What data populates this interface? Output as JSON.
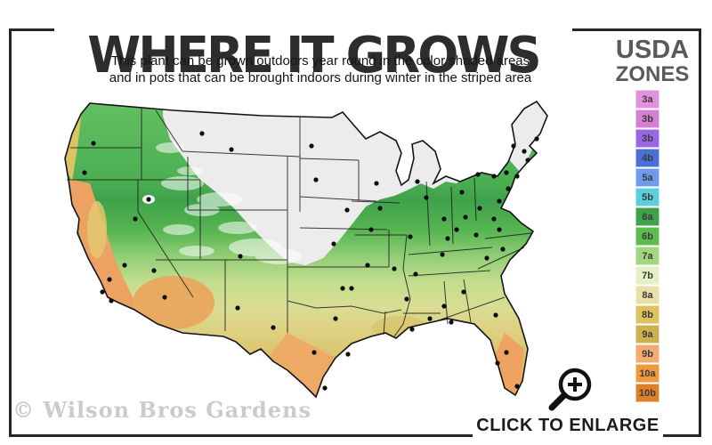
{
  "header": {
    "title": "WHERE IT GROWS",
    "subtitle_line1": "This plant can be grown outdoors year round in the color shaded areas",
    "subtitle_line2": "and in pots that can be brought indoors during winter in the striped area"
  },
  "legend": {
    "title_line1": "USDA",
    "title_line2": "ZONES",
    "zones": [
      {
        "label": "3a",
        "color": "#e292dc"
      },
      {
        "label": "3b",
        "color": "#d47fd4"
      },
      {
        "label": "3b",
        "color": "#9a68e2"
      },
      {
        "label": "4b",
        "color": "#4d6fd8"
      },
      {
        "label": "5a",
        "color": "#6f9ce8"
      },
      {
        "label": "5b",
        "color": "#5bcfdd"
      },
      {
        "label": "6a",
        "color": "#3fa24a"
      },
      {
        "label": "6b",
        "color": "#5dbb4f"
      },
      {
        "label": "7a",
        "color": "#a3d67e"
      },
      {
        "label": "7b",
        "color": "#e3efc4"
      },
      {
        "label": "8a",
        "color": "#eadfa4"
      },
      {
        "label": "8b",
        "color": "#dcc35e"
      },
      {
        "label": "9a",
        "color": "#cfb04e"
      },
      {
        "label": "9b",
        "color": "#f2ab73"
      },
      {
        "label": "10a",
        "color": "#ee9840"
      },
      {
        "label": "10b",
        "color": "#de7f2b"
      }
    ]
  },
  "map": {
    "watermark": "© Wilson Bros Gardens"
  },
  "footer": {
    "enlarge_label": "CLICK TO ENLARGE"
  },
  "colors": {
    "frame": "#262626",
    "title_text": "#2d2d2d",
    "legend_title_text": "#5a5a5a",
    "watermark_text": "#cbcbcb"
  }
}
